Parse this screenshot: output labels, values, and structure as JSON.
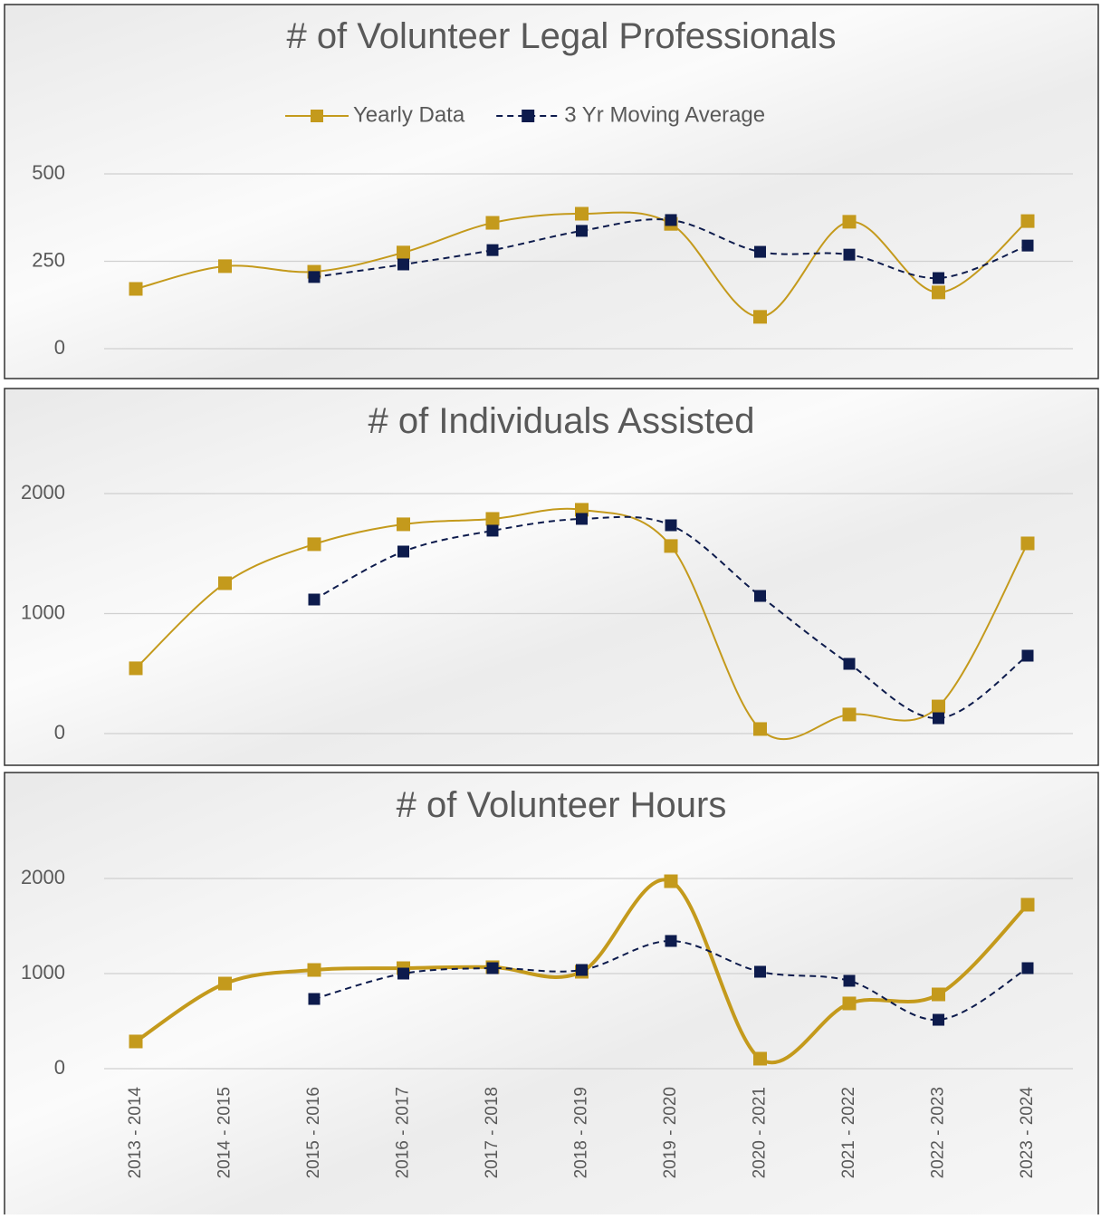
{
  "chart_data": [
    {
      "type": "line",
      "title": "# of Volunteer Legal Professionals",
      "ylim": [
        0,
        500
      ],
      "yticks": [
        0,
        250,
        500
      ],
      "grid": true,
      "legend": "top",
      "series": [
        {
          "name": "Yearly Data",
          "color": "#C49A1C",
          "values": [
            171,
            236,
            220,
            275,
            360,
            386,
            357,
            91,
            363,
            161,
            365
          ]
        },
        {
          "name": "3 Yr Moving Average",
          "color": "#0D1B4C",
          "dashed": true,
          "values": [
            null,
            null,
            205,
            241,
            282,
            337,
            368,
            277,
            269,
            202,
            295
          ]
        }
      ]
    },
    {
      "type": "line",
      "title": "# of Individuals Assisted",
      "ylim": [
        0,
        2000
      ],
      "yticks": [
        0,
        1000,
        2000
      ],
      "grid": true,
      "series": [
        {
          "color": "#C49A1C",
          "values": [
            544,
            1253,
            1578,
            1744,
            1789,
            1865,
            1563,
            38,
            159,
            226,
            1585
          ]
        },
        {
          "color": "#0D1B4C",
          "dashed": true,
          "values": [
            null,
            null,
            1117,
            1517,
            1691,
            1789,
            1736,
            1147,
            581,
            128,
            649
          ]
        }
      ]
    },
    {
      "type": "line",
      "title": "# of Volunteer Hours",
      "categories": [
        "2013 - 2014",
        "2014 - 2015",
        "2015 - 2016",
        "2016 - 2017",
        "2017 - 2018",
        "2018 - 2019",
        "2019 - 2020",
        "2020 - 2021",
        "2021 - 2022",
        "2022 - 2023",
        "2023 - 2024"
      ],
      "ylim": [
        0,
        2000
      ],
      "yticks": [
        0,
        1000,
        2000
      ],
      "grid": true,
      "series": [
        {
          "color": "#C49A1C",
          "width": 4,
          "values": [
            286,
            895,
            1038,
            1057,
            1067,
            1019,
            1971,
            105,
            686,
            781,
            1724
          ]
        },
        {
          "color": "#0D1B4C",
          "dashed": true,
          "values": [
            null,
            null,
            733,
            1000,
            1057,
            1038,
            1343,
            1019,
            924,
            514,
            1057
          ]
        }
      ]
    }
  ]
}
